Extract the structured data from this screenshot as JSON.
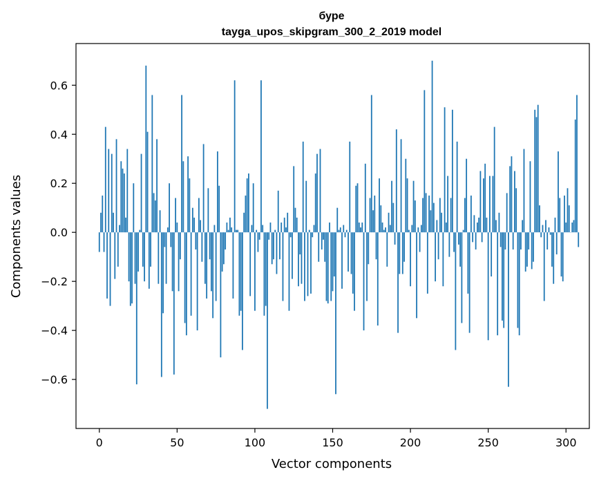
{
  "chart_data": {
    "type": "bar",
    "title_line1": "буре",
    "title_line2": "tayga_upos_skipgram_300_2_2019 model",
    "xlabel": "Vector components",
    "ylabel": "Components values",
    "xlim": [
      -15,
      315
    ],
    "ylim": [
      -0.8,
      0.77
    ],
    "x_ticks": [
      0,
      50,
      100,
      150,
      200,
      250,
      300
    ],
    "y_ticks": [
      -0.6,
      -0.4,
      -0.2,
      0.0,
      0.2,
      0.4,
      0.6
    ],
    "y_tick_labels": [
      "−0.6",
      "−0.4",
      "−0.2",
      "0.0",
      "0.2",
      "0.4",
      "0.6"
    ],
    "grid": false,
    "bar_color": "#1f77b4",
    "values": [
      -0.08,
      0.08,
      0.15,
      -0.08,
      0.43,
      -0.27,
      0.34,
      -0.3,
      0.32,
      0.08,
      -0.19,
      0.38,
      -0.14,
      0.03,
      0.29,
      0.26,
      0.24,
      0.06,
      0.34,
      -0.2,
      -0.3,
      -0.29,
      0.2,
      -0.21,
      -0.62,
      -0.16,
      0.01,
      0.32,
      -0.14,
      -0.2,
      0.68,
      0.41,
      -0.23,
      -0.14,
      0.56,
      0.16,
      0.13,
      0.38,
      -0.21,
      0.09,
      -0.59,
      -0.33,
      -0.06,
      -0.21,
      0.02,
      0.2,
      -0.06,
      -0.24,
      -0.58,
      0.14,
      0.04,
      -0.24,
      -0.11,
      0.56,
      0.29,
      -0.37,
      -0.42,
      0.31,
      0.22,
      -0.34,
      0.1,
      0.06,
      -0.07,
      -0.4,
      0.14,
      0.05,
      -0.12,
      0.36,
      -0.21,
      -0.27,
      0.18,
      -0.11,
      -0.24,
      -0.35,
      0.03,
      -0.28,
      0.33,
      0.19,
      -0.51,
      -0.16,
      -0.13,
      -0.07,
      0.04,
      0.01,
      0.06,
      0.02,
      -0.27,
      0.62,
      0.01,
      0.01,
      -0.34,
      -0.32,
      -0.48,
      0.08,
      0.15,
      0.22,
      0.24,
      -0.26,
      0.03,
      0.2,
      -0.32,
      0.01,
      -0.08,
      -0.03,
      0.62,
      0.03,
      -0.34,
      -0.3,
      -0.72,
      -0.03,
      0.04,
      -0.13,
      -0.11,
      0.01,
      -0.17,
      0.17,
      -0.11,
      0.04,
      -0.28,
      0.06,
      0.02,
      0.08,
      -0.32,
      -0.02,
      -0.19,
      0.27,
      0.1,
      0.06,
      -0.22,
      -0.09,
      -0.21,
      0.37,
      -0.28,
      0.21,
      -0.26,
      0.01,
      -0.25,
      -0.02,
      0.03,
      0.24,
      0.32,
      -0.12,
      0.34,
      -0.07,
      -0.03,
      -0.12,
      -0.28,
      -0.29,
      0.04,
      -0.28,
      -0.24,
      -0.18,
      -0.66,
      0.1,
      0.01,
      0.02,
      -0.23,
      0.03,
      -0.02,
      0.01,
      -0.16,
      0.37,
      -0.17,
      -0.25,
      -0.32,
      0.19,
      0.2,
      0.04,
      0.02,
      0.04,
      -0.4,
      0.28,
      -0.28,
      -0.13,
      0.14,
      0.56,
      0.09,
      0.15,
      -0.11,
      -0.38,
      0.22,
      0.11,
      0.04,
      0.01,
      0.02,
      -0.14,
      0.08,
      0.03,
      0.21,
      0.12,
      -0.05,
      0.42,
      -0.41,
      -0.17,
      0.38,
      -0.17,
      -0.12,
      0.3,
      0.22,
      0.01,
      -0.22,
      0.03,
      0.21,
      0.13,
      -0.35,
      0.02,
      -0.08,
      0.03,
      0.14,
      0.58,
      0.16,
      -0.25,
      0.15,
      0.09,
      0.7,
      0.12,
      -0.2,
      0.05,
      -0.11,
      0.14,
      0.08,
      -0.22,
      0.51,
      0.04,
      0.23,
      -0.1,
      0.14,
      0.5,
      -0.08,
      -0.48,
      0.37,
      -0.05,
      -0.14,
      -0.37,
      0.01,
      0.14,
      0.3,
      -0.25,
      -0.41,
      0.15,
      -0.04,
      0.07,
      -0.07,
      0.04,
      0.06,
      0.25,
      -0.04,
      0.22,
      0.28,
      0.06,
      -0.44,
      0.23,
      -0.18,
      0.23,
      0.43,
      0.05,
      -0.42,
      0.08,
      -0.06,
      -0.36,
      -0.39,
      -0.07,
      0.16,
      -0.63,
      0.27,
      0.31,
      -0.07,
      0.25,
      0.18,
      -0.39,
      -0.42,
      -0.07,
      0.05,
      0.34,
      -0.16,
      -0.14,
      -0.07,
      0.29,
      -0.15,
      -0.12,
      0.5,
      0.47,
      0.52,
      0.11,
      -0.02,
      0.03,
      -0.28,
      0.05,
      -0.07,
      0.02,
      -0.01,
      -0.14,
      -0.21,
      0.06,
      -0.09,
      0.33,
      0.14,
      -0.18,
      -0.2,
      0.15,
      0.04,
      0.18,
      0.11,
      0.0,
      0.04,
      0.05,
      0.46,
      0.56,
      -0.06
    ]
  }
}
